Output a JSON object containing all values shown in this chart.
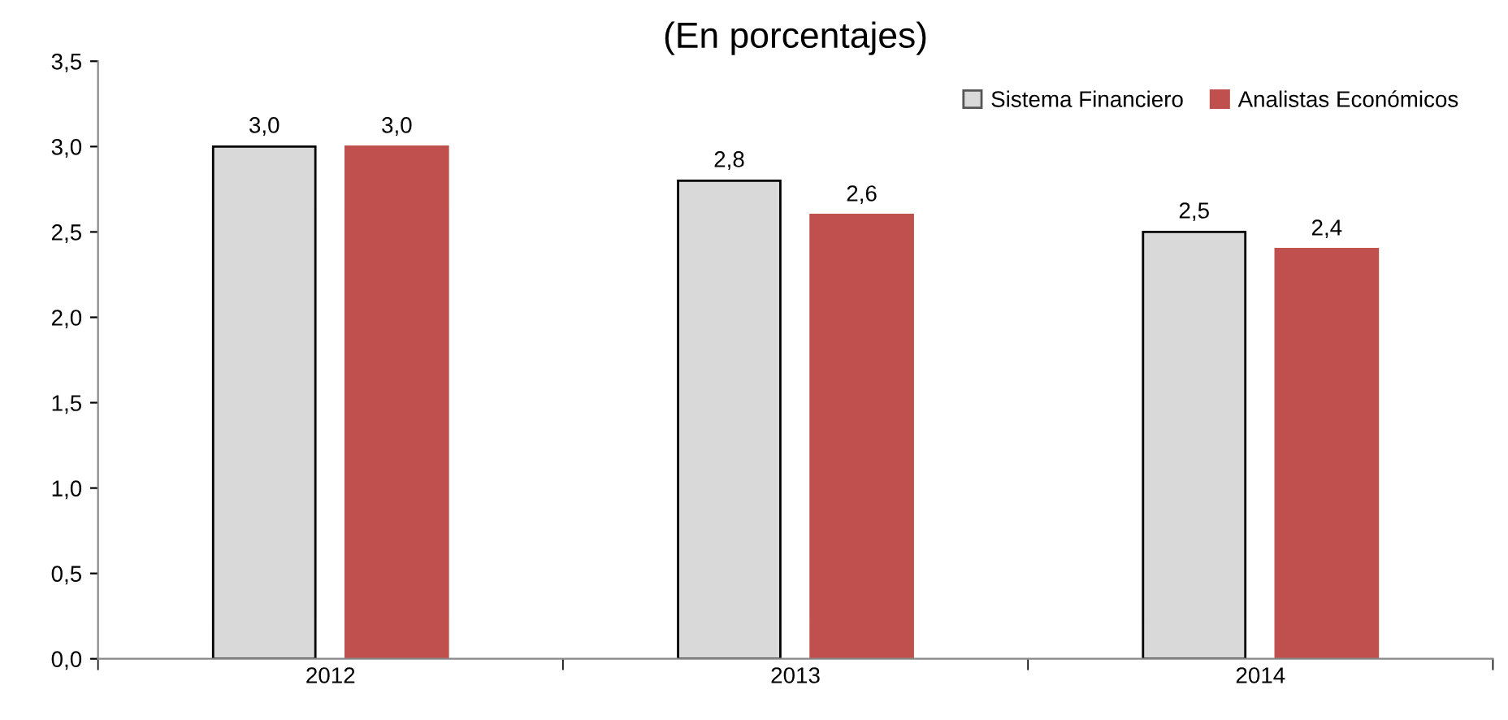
{
  "chart_data": {
    "type": "bar",
    "title": "(En porcentajes)",
    "categories": [
      "2012",
      "2013",
      "2014"
    ],
    "series": [
      {
        "name": "Sistema Financiero",
        "color": "#d9d9d9",
        "values": [
          3.0,
          2.8,
          2.5
        ],
        "value_labels": [
          "3,0",
          "2,8",
          "2,5"
        ]
      },
      {
        "name": "Analistas Económicos",
        "color": "#c0504d",
        "values": [
          3.0,
          2.6,
          2.4
        ],
        "value_labels": [
          "3,0",
          "2,6",
          "2,4"
        ]
      }
    ],
    "ylim": [
      0,
      3.5
    ],
    "yticks": [
      {
        "value": 0,
        "label": "0,0"
      },
      {
        "value": 0.5,
        "label": "0,5"
      },
      {
        "value": 1,
        "label": "1,0"
      },
      {
        "value": 1.5,
        "label": "1,5"
      },
      {
        "value": 2,
        "label": "2,0"
      },
      {
        "value": 2.5,
        "label": "2,5"
      },
      {
        "value": 3,
        "label": "3,0"
      },
      {
        "value": 3.5,
        "label": "3,5"
      }
    ],
    "grid": false,
    "legend": "top right"
  }
}
